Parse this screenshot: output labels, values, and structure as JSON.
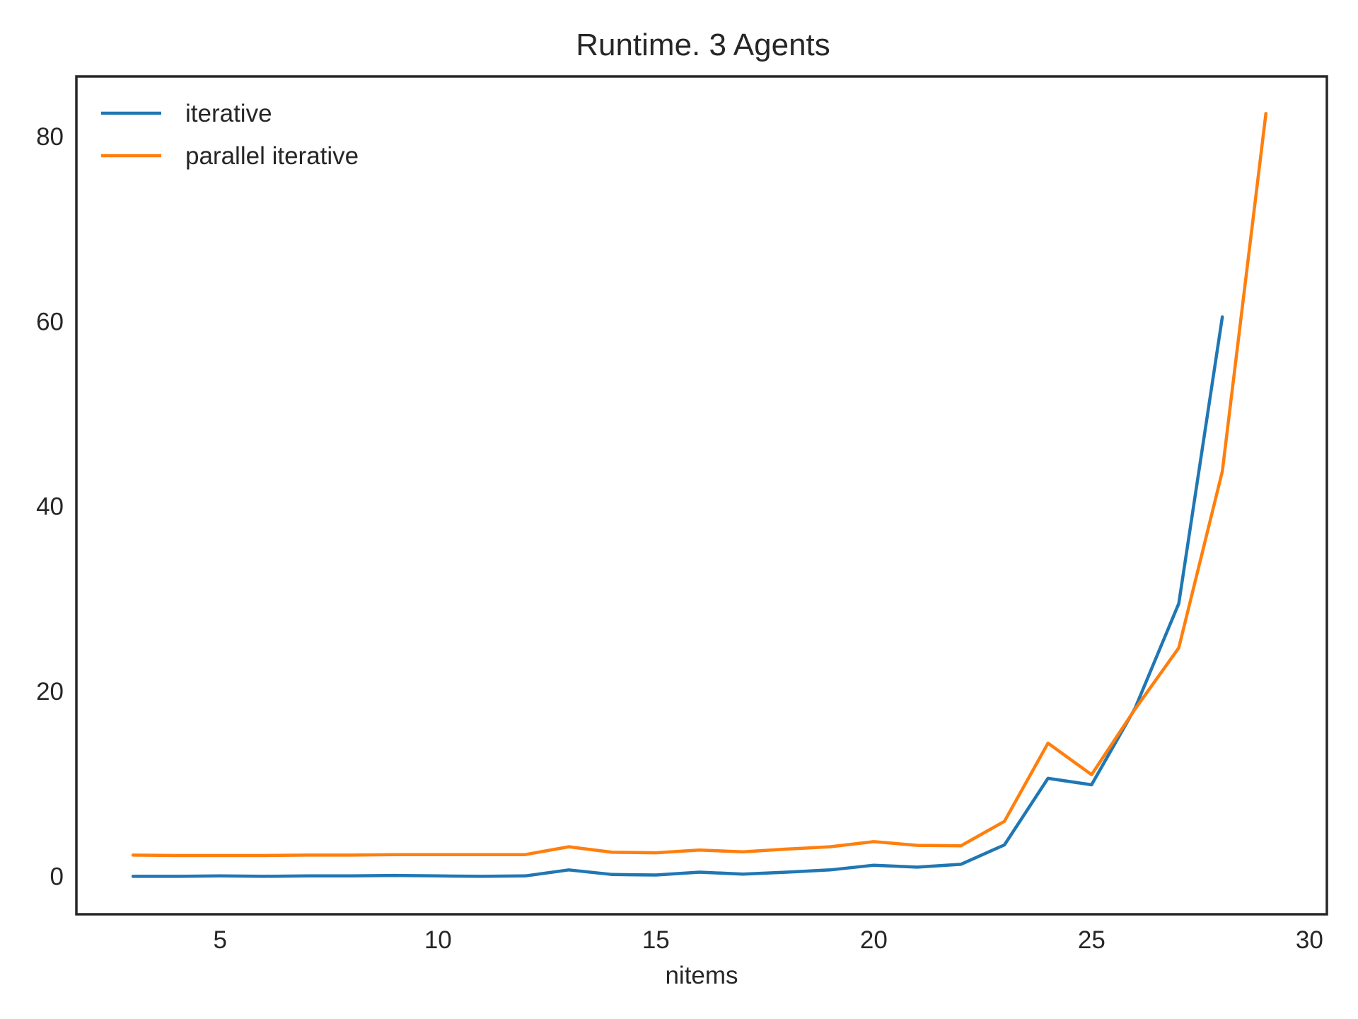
{
  "chart_data": {
    "type": "line",
    "title": "Runtime. 3 Agents",
    "xlabel": "nitems",
    "ylabel": "",
    "xlim": [
      1.7,
      30.4
    ],
    "ylim": [
      -4.1,
      86.5
    ],
    "xticks": [
      5,
      10,
      15,
      20,
      25,
      30
    ],
    "yticks": [
      0,
      20,
      40,
      60,
      80
    ],
    "grid": false,
    "legend_position": "upper-left",
    "series": [
      {
        "name": "iterative",
        "color": "#1f77b4",
        "x": [
          3,
          4,
          5,
          6,
          7,
          8,
          9,
          10,
          11,
          12,
          13,
          14,
          15,
          16,
          17,
          18,
          19,
          20,
          21,
          22,
          23,
          24,
          25,
          26,
          27,
          28
        ],
        "y": [
          0.0,
          0.0,
          0.05,
          0.0,
          0.05,
          0.05,
          0.1,
          0.05,
          0.0,
          0.05,
          0.7,
          0.2,
          0.15,
          0.45,
          0.25,
          0.45,
          0.7,
          1.2,
          1.0,
          1.3,
          3.4,
          10.6,
          9.9,
          18.2,
          29.5,
          60.5
        ]
      },
      {
        "name": "parallel iterative",
        "color": "#ff7f0e",
        "x": [
          3,
          4,
          5,
          6,
          7,
          8,
          9,
          10,
          11,
          12,
          13,
          14,
          15,
          16,
          17,
          18,
          19,
          20,
          21,
          22,
          23,
          24,
          25,
          26,
          27,
          28,
          29
        ],
        "y": [
          2.3,
          2.25,
          2.25,
          2.25,
          2.3,
          2.3,
          2.35,
          2.35,
          2.35,
          2.35,
          3.2,
          2.6,
          2.55,
          2.85,
          2.65,
          2.95,
          3.2,
          3.75,
          3.35,
          3.3,
          5.95,
          14.4,
          11.0,
          18.1,
          24.7,
          43.8,
          82.5
        ]
      }
    ]
  }
}
